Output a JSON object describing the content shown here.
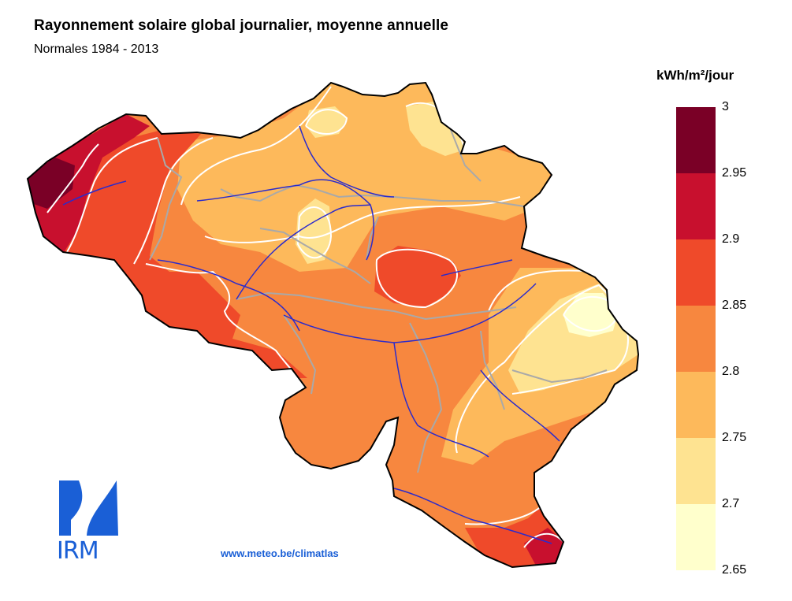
{
  "title": "Rayonnement solaire global journalier, moyenne annuelle",
  "subtitle": "Normales 1984 - 2013",
  "legend": {
    "unit": "kWh/m²/jour",
    "ticks": [
      "3",
      "2.95",
      "2.9",
      "2.85",
      "2.8",
      "2.75",
      "2.7",
      "2.65"
    ],
    "colors": [
      "#7a0026",
      "#c8102e",
      "#ef4a2a",
      "#f7873f",
      "#fdb95b",
      "#fee391",
      "#ffffcc"
    ]
  },
  "logo": {
    "text": "IRM",
    "icon": "irm-logo-icon",
    "color": "#1a5fd6"
  },
  "website": "www.meteo.be/climatlas",
  "colors": {
    "river": "#2b2bcc",
    "province_border": "#a9a9a9",
    "isoline": "#ffffff",
    "outline": "#000000"
  }
}
